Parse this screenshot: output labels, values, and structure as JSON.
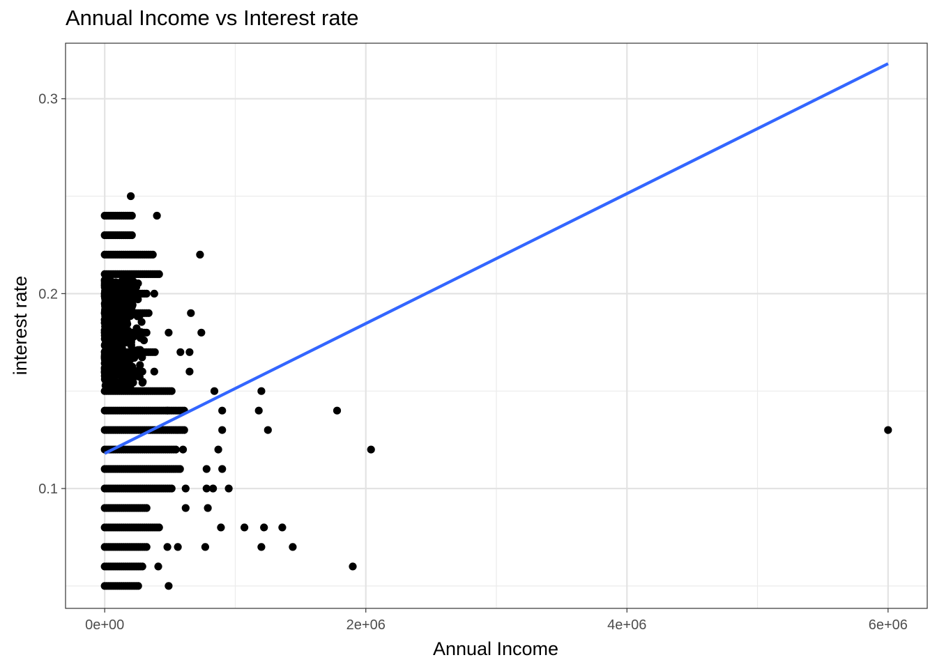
{
  "chart_data": {
    "type": "scatter",
    "title": "Annual Income vs Interest rate",
    "xlabel": "Annual Income",
    "ylabel": "interest rate",
    "xlim": [
      -300000,
      6300000
    ],
    "ylim": [
      0.0385,
      0.3285
    ],
    "x_ticks": [
      {
        "value": 0,
        "label": "0e+00"
      },
      {
        "value": 2000000,
        "label": "2e+06"
      },
      {
        "value": 4000000,
        "label": "4e+06"
      },
      {
        "value": 6000000,
        "label": "6e+06"
      }
    ],
    "y_ticks": [
      {
        "value": 0.1,
        "label": "0.1"
      },
      {
        "value": 0.2,
        "label": "0.2"
      },
      {
        "value": 0.3,
        "label": "0.3"
      }
    ],
    "x_minor": [
      1000000,
      3000000,
      5000000
    ],
    "y_minor": [
      0.05,
      0.15,
      0.25
    ],
    "grid": true,
    "point_color": "#000000",
    "fit_line": {
      "color": "#3366FF",
      "x": [
        0,
        6000000
      ],
      "y": [
        0.118,
        0.318
      ]
    },
    "point_bands": [
      {
        "y": 0.05,
        "x0": 0,
        "x1": 260000
      },
      {
        "y": 0.06,
        "x0": 0,
        "x1": 300000
      },
      {
        "y": 0.07,
        "x0": 0,
        "x1": 330000
      },
      {
        "y": 0.08,
        "x0": 0,
        "x1": 430000
      },
      {
        "y": 0.09,
        "x0": 0,
        "x1": 330000
      },
      {
        "y": 0.1,
        "x0": 0,
        "x1": 520000
      },
      {
        "y": 0.11,
        "x0": 0,
        "x1": 580000
      },
      {
        "y": 0.12,
        "x0": 0,
        "x1": 560000
      },
      {
        "y": 0.13,
        "x0": 0,
        "x1": 620000
      },
      {
        "y": 0.14,
        "x0": 0,
        "x1": 620000
      },
      {
        "y": 0.15,
        "x0": 0,
        "x1": 520000
      },
      {
        "y": 0.16,
        "x0": 0,
        "x1": 300000
      },
      {
        "y": 0.17,
        "x0": 0,
        "x1": 400000
      },
      {
        "y": 0.18,
        "x0": 0,
        "x1": 330000
      },
      {
        "y": 0.19,
        "x0": 0,
        "x1": 350000
      },
      {
        "y": 0.2,
        "x0": 0,
        "x1": 330000
      },
      {
        "y": 0.21,
        "x0": 0,
        "x1": 420000
      },
      {
        "y": 0.22,
        "x0": 0,
        "x1": 380000
      },
      {
        "y": 0.23,
        "x0": 0,
        "x1": 220000
      },
      {
        "y": 0.24,
        "x0": 0,
        "x1": 220000
      }
    ],
    "points": [
      [
        6000000,
        0.13
      ],
      [
        2040000,
        0.12
      ],
      [
        1780000,
        0.14
      ],
      [
        1900000,
        0.06
      ],
      [
        1440000,
        0.07
      ],
      [
        1200000,
        0.07
      ],
      [
        1360000,
        0.08
      ],
      [
        1220000,
        0.08
      ],
      [
        1070000,
        0.08
      ],
      [
        890000,
        0.08
      ],
      [
        1250000,
        0.13
      ],
      [
        1200000,
        0.15
      ],
      [
        1180000,
        0.14
      ],
      [
        840000,
        0.15
      ],
      [
        900000,
        0.14
      ],
      [
        900000,
        0.13
      ],
      [
        950000,
        0.1
      ],
      [
        830000,
        0.1
      ],
      [
        900000,
        0.11
      ],
      [
        780000,
        0.11
      ],
      [
        870000,
        0.12
      ],
      [
        780000,
        0.1
      ],
      [
        790000,
        0.09
      ],
      [
        770000,
        0.07
      ],
      [
        730000,
        0.22
      ],
      [
        740000,
        0.18
      ],
      [
        660000,
        0.19
      ],
      [
        650000,
        0.17
      ],
      [
        650000,
        0.16
      ],
      [
        580000,
        0.17
      ],
      [
        600000,
        0.12
      ],
      [
        620000,
        0.09
      ],
      [
        200000,
        0.25
      ],
      [
        400000,
        0.24
      ],
      [
        380000,
        0.2
      ],
      [
        490000,
        0.05
      ],
      [
        480000,
        0.07
      ],
      [
        410000,
        0.06
      ],
      [
        490000,
        0.18
      ],
      [
        480000,
        0.14
      ],
      [
        380000,
        0.16
      ],
      [
        620000,
        0.1
      ],
      [
        560000,
        0.07
      ]
    ]
  }
}
